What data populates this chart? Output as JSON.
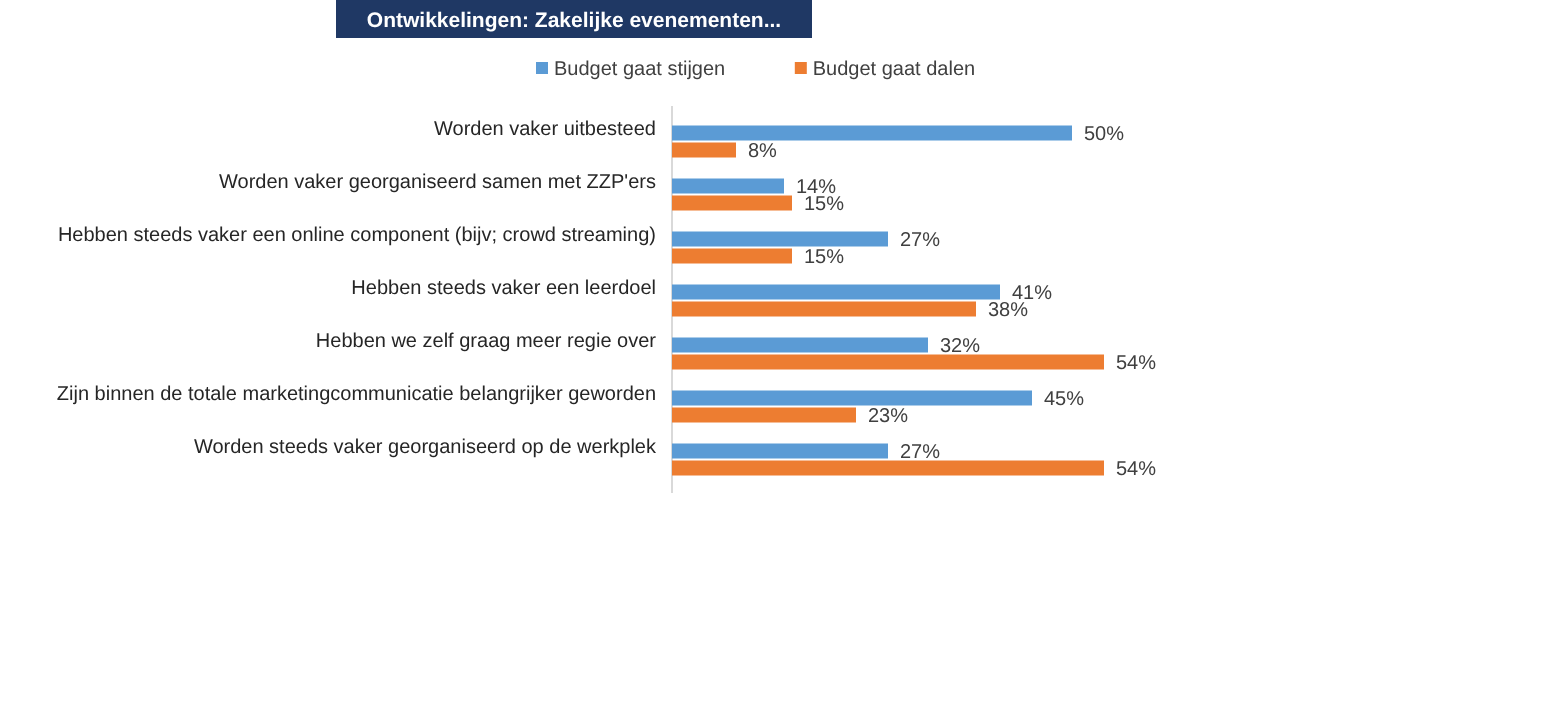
{
  "chart_data": {
    "type": "bar",
    "orientation": "horizontal",
    "title": "Ontwikkelingen: Zakelijke evenementen...",
    "categories": [
      "Worden vaker uitbesteed",
      "Worden vaker georganiseerd samen met ZZP'ers",
      "Hebben steeds vaker een online component (bijv; crowd streaming)",
      "Hebben steeds vaker een leerdoel",
      "Hebben we zelf graag meer regie over",
      "Zijn binnen de totale marketingcommunicatie belangrijker  geworden",
      "Worden steeds vaker georganiseerd op de werkplek"
    ],
    "series": [
      {
        "name": "Budget gaat stijgen",
        "color": "#5b9bd5",
        "values": [
          50,
          14,
          27,
          41,
          32,
          45,
          27
        ],
        "value_labels": [
          "50%",
          "14%",
          "27%",
          "41%",
          "32%",
          "45%",
          "27%"
        ]
      },
      {
        "name": "Budget gaat dalen",
        "color": "#ed7d31",
        "values": [
          8,
          15,
          15,
          38,
          54,
          23,
          54
        ],
        "value_labels": [
          "8%",
          "15%",
          "15%",
          "38%",
          "54%",
          "23%",
          "54%"
        ]
      }
    ],
    "legend": "top"
  }
}
